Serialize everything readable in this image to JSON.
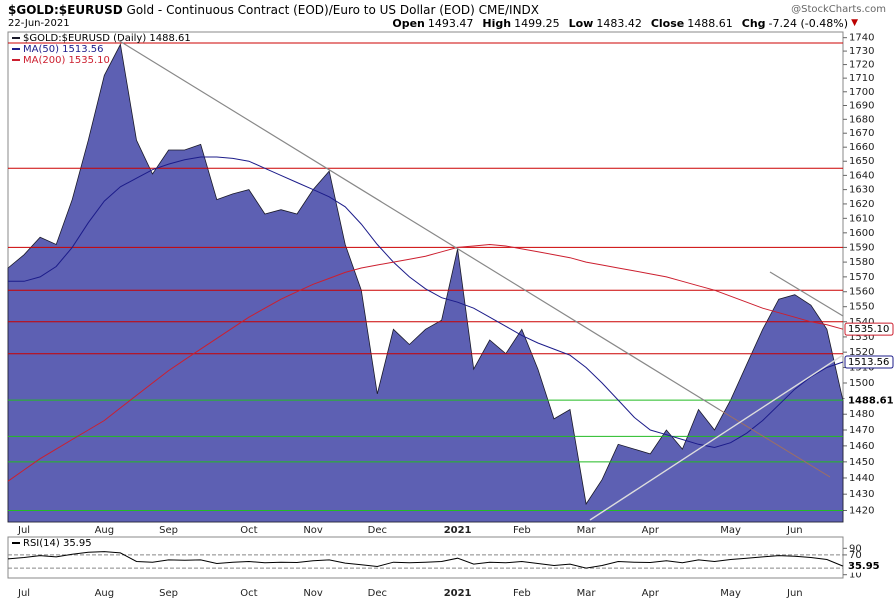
{
  "header": {
    "symbol": "$GOLD:$EURUSD",
    "description": "Gold - Continuous Contract (EOD)/Euro to US Dollar (EOD)",
    "exchange": "CME/INDX",
    "date": "22-Jun-2021",
    "watermark": "@StockCharts.com",
    "quote": [
      {
        "label": "Open",
        "value": 1493.47
      },
      {
        "label": "High",
        "value": 1499.25
      },
      {
        "label": "Low",
        "value": 1483.42
      },
      {
        "label": "Close",
        "value": 1488.61
      },
      {
        "label": "Chg",
        "value": "-7.24 (-0.48%)"
      }
    ]
  },
  "chart_data": [
    {
      "type": "area",
      "log_scale": true,
      "categories": [
        null,
        "Jul",
        null,
        null,
        null,
        null,
        "Aug",
        null,
        null,
        null,
        "Sep",
        null,
        null,
        null,
        null,
        "Oct",
        null,
        null,
        null,
        "Nov",
        null,
        null,
        null,
        "Dec",
        null,
        null,
        null,
        null,
        "2021",
        null,
        null,
        null,
        "Feb",
        null,
        null,
        null,
        "Mar",
        null,
        null,
        null,
        "Apr",
        null,
        null,
        null,
        null,
        "May",
        null,
        null,
        null,
        "Jun",
        null,
        null,
        null
      ],
      "series": [
        {
          "name": "$GOLD:$EURUSD (Daily) 1488.61",
          "color": "#5d60b3",
          "tag": "1488.61",
          "values": [
            1576,
            1585,
            1597,
            1592,
            1623,
            1665,
            1712,
            1735,
            1665,
            1641,
            1658,
            1658,
            1662,
            1623,
            1627,
            1630,
            1613,
            1616,
            1613,
            1630,
            1643,
            1592,
            1561,
            1493,
            1535,
            1525,
            1535,
            1541,
            1589,
            1509,
            1528,
            1519,
            1535,
            1509,
            1477,
            1483,
            1424,
            1439,
            1461,
            1458,
            1455,
            1470,
            1458,
            1483,
            1470,
            1489,
            1512,
            1535,
            1555,
            1558,
            1551,
            1535,
            1488.61
          ]
        },
        {
          "name": "MA(50) 1513.56",
          "type": "line",
          "color": "#1c1c8a",
          "tag": "1513.56",
          "values": [
            1567,
            1567,
            1570,
            1577,
            1590,
            1607,
            1622,
            1632,
            1638,
            1644,
            1648,
            1651,
            1653,
            1653,
            1652,
            1650,
            1645,
            1640,
            1635,
            1630,
            1625,
            1618,
            1606,
            1592,
            1580,
            1570,
            1562,
            1556,
            1553,
            1549,
            1543,
            1537,
            1531,
            1526,
            1522,
            1518,
            1510,
            1500,
            1489,
            1478,
            1470,
            1467,
            1464,
            1461,
            1459,
            1462,
            1468,
            1476,
            1486,
            1496,
            1504,
            1510,
            1513.56
          ]
        },
        {
          "name": "MA(200) 1535.10",
          "type": "line",
          "color": "#cc1f2f",
          "tag": "1535.10",
          "values": [
            1438,
            1445,
            1452,
            1458,
            1464,
            1470,
            1476,
            1484,
            1492,
            1500,
            1508,
            1515,
            1522,
            1529,
            1536,
            1543,
            1549,
            1555,
            1560,
            1565,
            1569,
            1573,
            1576,
            1578,
            1580,
            1582,
            1584,
            1587,
            1590,
            1591,
            1592,
            1591,
            1589,
            1587,
            1585,
            1583,
            1580,
            1578,
            1576,
            1574,
            1572,
            1570,
            1567,
            1564,
            1561,
            1557,
            1553,
            1549,
            1546,
            1543,
            1540,
            1538,
            1535.1
          ]
        }
      ],
      "ylim": [
        1413,
        1742
      ],
      "yticks": [
        1420,
        1430,
        1440,
        1450,
        1460,
        1470,
        1480,
        1490,
        1500,
        1510,
        1520,
        1530,
        1540,
        1550,
        1560,
        1570,
        1580,
        1590,
        1600,
        1610,
        1620,
        1630,
        1640,
        1650,
        1660,
        1670,
        1680,
        1690,
        1700,
        1710,
        1720,
        1730,
        1740
      ],
      "levels": [
        {
          "value": 1736,
          "color": "#cc0000"
        },
        {
          "value": 1645,
          "color": "#cc0000"
        },
        {
          "value": 1590,
          "color": "#cc0000"
        },
        {
          "value": 1561,
          "color": "#cc0000"
        },
        {
          "value": 1540,
          "color": "#cc0000"
        },
        {
          "value": 1519,
          "color": "#cc0000"
        },
        {
          "value": 1489,
          "color": "#22bb22"
        },
        {
          "value": 1466,
          "color": "#22bb22"
        },
        {
          "value": 1450,
          "color": "#22bb22"
        },
        {
          "value": 1420,
          "color": "#22bb22"
        }
      ]
    },
    {
      "type": "line",
      "categories": [
        null,
        "Jul",
        null,
        null,
        null,
        null,
        "Aug",
        null,
        null,
        null,
        "Sep",
        null,
        null,
        null,
        null,
        "Oct",
        null,
        null,
        null,
        "Nov",
        null,
        null,
        null,
        "Dec",
        null,
        null,
        null,
        null,
        "2021",
        null,
        null,
        null,
        "Feb",
        null,
        null,
        null,
        "Mar",
        null,
        null,
        null,
        "Apr",
        null,
        null,
        null,
        null,
        "May",
        null,
        null,
        null,
        "Jun",
        null,
        null,
        null
      ],
      "series": [
        {
          "name": "RSI(14) 35.95",
          "color": "#000000",
          "tag": "35.95",
          "values": [
            58,
            62,
            68,
            64,
            72,
            78,
            80,
            76,
            50,
            48,
            55,
            54,
            55,
            44,
            48,
            50,
            46,
            48,
            47,
            52,
            55,
            45,
            40,
            35,
            48,
            46,
            48,
            50,
            60,
            42,
            48,
            46,
            50,
            44,
            38,
            42,
            30,
            38,
            50,
            48,
            47,
            52,
            46,
            55,
            50,
            56,
            60,
            64,
            68,
            66,
            62,
            56,
            35.95
          ]
        }
      ],
      "ylim": [
        0,
        100
      ],
      "yticks": [
        10,
        70,
        90
      ],
      "levels": [
        {
          "value": 30,
          "color": "#888888"
        },
        {
          "value": 70,
          "color": "#888888"
        }
      ]
    }
  ]
}
